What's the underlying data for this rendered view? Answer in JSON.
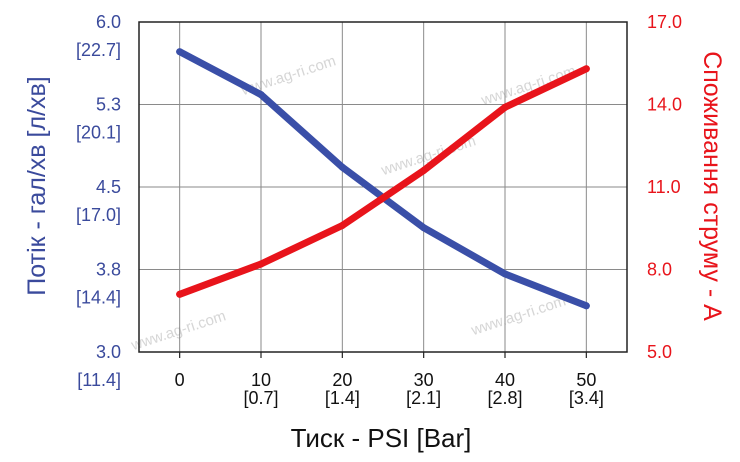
{
  "chart_data": {
    "type": "line",
    "xlabel": "Тиск - PSI [Bar]",
    "ylabel_left": "Потік - гал/хв [л/хв]",
    "ylabel_right": "Споживання струму - А",
    "x_ticks": [
      {
        "value": 0,
        "label": "0",
        "sub": ""
      },
      {
        "value": 10,
        "label": "10",
        "sub": "[0.7]"
      },
      {
        "value": 20,
        "label": "20",
        "sub": "[1.4]"
      },
      {
        "value": 30,
        "label": "30",
        "sub": "[2.1]"
      },
      {
        "value": 40,
        "label": "40",
        "sub": "[2.8]"
      },
      {
        "value": 50,
        "label": "50",
        "sub": "[3.4]"
      }
    ],
    "y_left_ticks": [
      {
        "value": 6.0,
        "label": "6.0",
        "sub": "[22.7]"
      },
      {
        "value": 5.25,
        "label": "5.3",
        "sub": "[20.1]"
      },
      {
        "value": 4.5,
        "label": "4.5",
        "sub": "[17.0]"
      },
      {
        "value": 3.75,
        "label": "3.8",
        "sub": "[14.4]"
      },
      {
        "value": 3.0,
        "label": "3.0",
        "sub": "[11.4]"
      }
    ],
    "y_right_ticks": [
      "17.0",
      "14.0",
      "11.0",
      "8.0",
      "5.0"
    ],
    "xlim": [
      -5,
      55
    ],
    "ylim_left": [
      3.0,
      6.0
    ],
    "ylim_right": [
      5.0,
      17.0
    ],
    "grid": true,
    "series": [
      {
        "axis": "left",
        "color": "#3a4fa8",
        "x": [
          0,
          10,
          20,
          30,
          40,
          50
        ],
        "values": [
          5.73,
          5.34,
          4.68,
          4.13,
          3.71,
          3.42
        ]
      },
      {
        "axis": "right",
        "color": "#e8141b",
        "x": [
          0,
          10,
          20,
          30,
          40,
          50
        ],
        "values": [
          7.1,
          8.2,
          9.6,
          11.6,
          13.9,
          15.3
        ]
      }
    ],
    "watermark": "www.ag-ri.com"
  }
}
